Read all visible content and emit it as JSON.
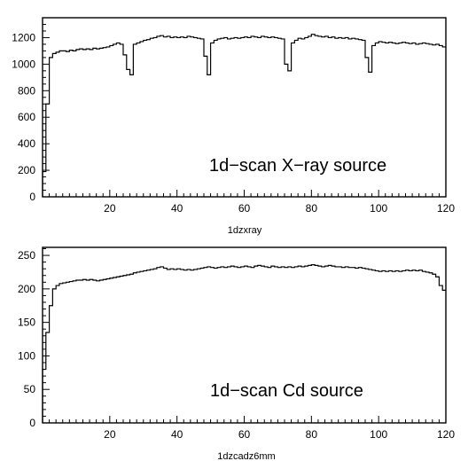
{
  "chart_data": [
    {
      "type": "histogram",
      "xlabel": "1dzxray",
      "annotation": "1d−scan X−ray source",
      "xlim": [
        0,
        120
      ],
      "ylim": [
        0,
        1350
      ],
      "xticks": [
        20,
        40,
        60,
        80,
        100,
        120
      ],
      "yticks": [
        0,
        200,
        400,
        600,
        800,
        1000,
        1200
      ],
      "xminor": 2,
      "yminor": 50,
      "bin_width": 1,
      "values": [
        190,
        700,
        1050,
        1080,
        1090,
        1100,
        1100,
        1095,
        1105,
        1100,
        1110,
        1115,
        1110,
        1115,
        1110,
        1120,
        1115,
        1120,
        1125,
        1130,
        1140,
        1150,
        1160,
        1150,
        1070,
        960,
        920,
        1150,
        1160,
        1170,
        1180,
        1185,
        1195,
        1200,
        1210,
        1215,
        1205,
        1210,
        1200,
        1205,
        1200,
        1205,
        1200,
        1210,
        1205,
        1200,
        1195,
        1190,
        1060,
        920,
        1160,
        1180,
        1190,
        1195,
        1200,
        1190,
        1195,
        1200,
        1195,
        1200,
        1205,
        1200,
        1210,
        1205,
        1200,
        1210,
        1205,
        1200,
        1205,
        1200,
        1195,
        1190,
        1000,
        950,
        1160,
        1180,
        1195,
        1190,
        1200,
        1210,
        1225,
        1215,
        1210,
        1205,
        1210,
        1200,
        1205,
        1195,
        1200,
        1195,
        1200,
        1190,
        1195,
        1190,
        1185,
        1180,
        1050,
        940,
        1140,
        1160,
        1170,
        1165,
        1160,
        1165,
        1160,
        1155,
        1160,
        1165,
        1160,
        1155,
        1160,
        1150,
        1155,
        1160,
        1155,
        1150,
        1145,
        1150,
        1140,
        1130
      ]
    },
    {
      "type": "histogram",
      "xlabel": "1dzcadz6mm",
      "annotation": "1d−scan Cd source",
      "xlim": [
        0,
        120
      ],
      "ylim": [
        0,
        262
      ],
      "xticks": [
        20,
        40,
        60,
        80,
        100,
        120
      ],
      "yticks": [
        0,
        50,
        100,
        150,
        200,
        250
      ],
      "xminor": 2,
      "yminor": 10,
      "bin_width": 1,
      "values": [
        80,
        135,
        175,
        200,
        205,
        208,
        209,
        210,
        211,
        212,
        213,
        213,
        214,
        213,
        214,
        213,
        212,
        213,
        214,
        215,
        216,
        217,
        218,
        219,
        220,
        221,
        222,
        224,
        225,
        226,
        227,
        228,
        229,
        230,
        232,
        233,
        231,
        229,
        230,
        229,
        230,
        229,
        228,
        229,
        228,
        229,
        230,
        231,
        232,
        233,
        232,
        231,
        232,
        233,
        232,
        233,
        234,
        233,
        232,
        233,
        234,
        233,
        232,
        234,
        235,
        234,
        233,
        232,
        234,
        233,
        232,
        233,
        232,
        233,
        232,
        233,
        234,
        233,
        234,
        235,
        236,
        235,
        234,
        233,
        234,
        235,
        234,
        233,
        233,
        232,
        233,
        232,
        232,
        231,
        232,
        231,
        230,
        229,
        228,
        227,
        226,
        227,
        226,
        227,
        226,
        227,
        226,
        227,
        228,
        227,
        228,
        227,
        228,
        226,
        225,
        224,
        222,
        218,
        205,
        198
      ]
    }
  ]
}
